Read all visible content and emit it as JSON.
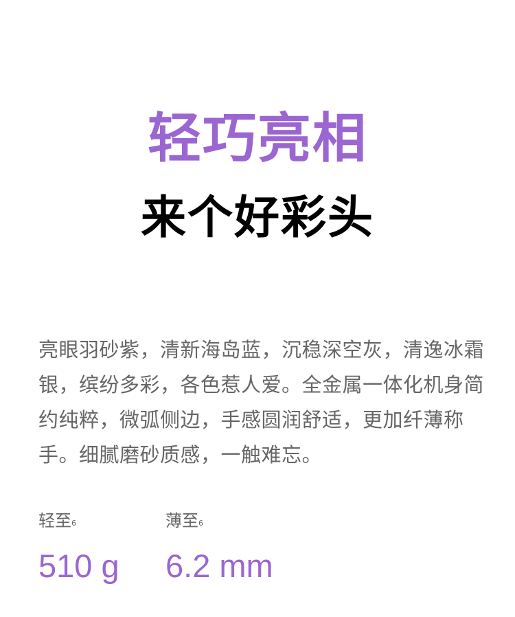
{
  "headline": {
    "primary": "轻巧亮相",
    "secondary": "来个好彩头"
  },
  "description": "亮眼羽砂紫，清新海岛蓝，沉稳深空灰，清逸冰霜银，缤纷多彩，各色惹人爱。全金属一体化机身简约纯粹，微弧侧边，手感圆润舒适，更加纤薄称手。细腻磨砂质感，一触难忘。",
  "specs": [
    {
      "label": "轻至",
      "footnote": "6",
      "value": "510 g"
    },
    {
      "label": "薄至",
      "footnote": "6",
      "value": "6.2 mm"
    }
  ],
  "colors": {
    "accent": "#9b66d1",
    "heading": "#000000",
    "body_text": "#666666",
    "background": "#ffffff"
  }
}
